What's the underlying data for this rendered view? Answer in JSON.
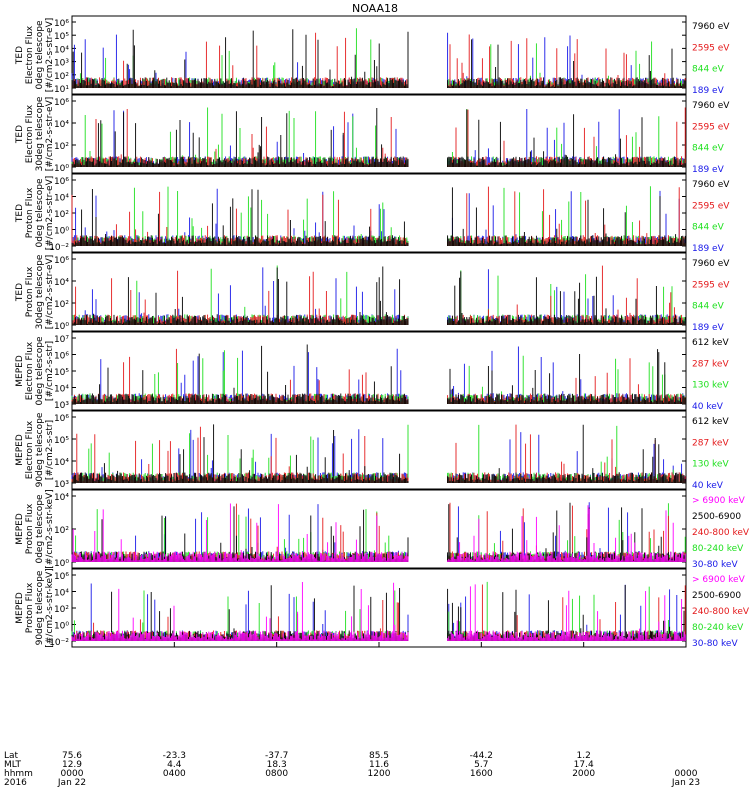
{
  "title": "NOAA18",
  "palette": {
    "red": "#e41a1c",
    "green": "#1fe01f",
    "blue": "#1818e8",
    "black": "#000000",
    "magenta": "#ff00ff"
  },
  "chart_data": {
    "type": "line",
    "x_range": [
      "2016-01-22 00:00",
      "2016-01-23 00:00"
    ],
    "data_gap": [
      "~2016-01-22 12:30",
      "~2016-01-22 15:40"
    ],
    "panels": [
      {
        "id": "ted-e-0",
        "ylabel": [
          "TED",
          "Electron Flux",
          "0deg telescope",
          "[#/cm2-s-str-eV]"
        ],
        "ylim": [
          1,
          1000000.0
        ],
        "log": true,
        "yticks": [
          "10¹",
          "10²",
          "10³",
          "10⁴",
          "10⁵",
          "10⁶"
        ],
        "series": [
          {
            "name": "7960 eV",
            "color": "black",
            "level": 1.3
          },
          {
            "name": "2595 eV",
            "color": "red",
            "level": 2.0
          },
          {
            "name": "844 eV",
            "color": "green",
            "level": 1.3
          },
          {
            "name": "189 eV",
            "color": "blue",
            "level": 0.0
          }
        ]
      },
      {
        "id": "ted-e-30",
        "ylabel": [
          "TED",
          "Electron Flux",
          "30deg telescope",
          "[#/cm2-s-str-eV]"
        ],
        "ylim": [
          1,
          1000000.0
        ],
        "log": true,
        "yticks": [
          "10⁰",
          "10²",
          "10⁴",
          "10⁶"
        ],
        "series": [
          {
            "name": "7960 eV",
            "color": "black",
            "level": 1.0
          },
          {
            "name": "2595 eV",
            "color": "red",
            "level": 1.8
          },
          {
            "name": "844 eV",
            "color": "green",
            "level": 1.2
          },
          {
            "name": "189 eV",
            "color": "blue",
            "level": 1.5
          }
        ]
      },
      {
        "id": "ted-p-0",
        "ylabel": [
          "TED",
          "Proton Flux",
          "0deg telescope",
          "[#/cm2-s-str-eV]"
        ],
        "ylim": [
          0.01,
          1000000.0
        ],
        "log": true,
        "yticks": [
          "10⁻²",
          "10⁰",
          "10²",
          "10⁴",
          "10⁶"
        ],
        "series": [
          {
            "name": "7960 eV",
            "color": "black",
            "level": 0.3
          },
          {
            "name": "2595 eV",
            "color": "red",
            "level": 1.0
          },
          {
            "name": "844 eV",
            "color": "green",
            "level": 0.6
          },
          {
            "name": "189 eV",
            "color": "blue",
            "level": 1.6
          }
        ]
      },
      {
        "id": "ted-p-30",
        "ylabel": [
          "TED",
          "Proton Flux",
          "30deg telescope",
          "[#/cm2-s-str-eV]"
        ],
        "ylim": [
          1,
          1000000.0
        ],
        "log": true,
        "yticks": [
          "10⁰",
          "10²",
          "10⁴",
          "10⁶"
        ],
        "series": [
          {
            "name": "7960 eV",
            "color": "black",
            "level": 0.0
          },
          {
            "name": "2595 eV",
            "color": "red",
            "level": 0.5
          },
          {
            "name": "844 eV",
            "color": "green",
            "level": 1.3
          },
          {
            "name": "189 eV",
            "color": "blue",
            "level": 1.8
          }
        ]
      },
      {
        "id": "meped-e-0",
        "ylabel": [
          "MEPED",
          "Electron Flux",
          "0deg telescope",
          "[#/cm2-s-str]"
        ],
        "ylim": [
          100.0,
          10000000.0
        ],
        "log": true,
        "yticks": [
          "10³",
          "10⁴",
          "10⁵",
          "10⁶",
          "10⁷"
        ],
        "series": [
          {
            "name": "612 keV",
            "color": "black",
            "level": 2.8
          },
          {
            "name": "287 keV",
            "color": "red",
            "level": 3.1
          },
          {
            "name": "130 keV",
            "color": "green",
            "level": 3.0
          },
          {
            "name": "40 keV",
            "color": "blue",
            "level": 3.4
          }
        ]
      },
      {
        "id": "meped-e-90",
        "ylabel": [
          "MEPED",
          "Electron Flux",
          "90deg telescope",
          "[#/cm2-s-str]"
        ],
        "ylim": [
          100.0,
          10000000.0
        ],
        "log": true,
        "yticks": [
          "10³",
          "10⁴",
          "10⁵",
          "10⁶"
        ],
        "series": [
          {
            "name": "612 keV",
            "color": "black",
            "level": 2.7
          },
          {
            "name": "287 keV",
            "color": "red",
            "level": 3.3
          },
          {
            "name": "130 keV",
            "color": "green",
            "level": 2.6
          },
          {
            "name": "40 keV",
            "color": "blue",
            "level": 3.2
          }
        ]
      },
      {
        "id": "meped-p-0",
        "ylabel": [
          "MEPED",
          "Proton Flux",
          "0deg telescope",
          "[#/cm2-s-str-keV]"
        ],
        "ylim": [
          0.01,
          100000.0
        ],
        "log": true,
        "yticks": [
          "10⁰",
          "10²",
          "10⁴"
        ],
        "series": [
          {
            "name": "> 6900 keV",
            "color": "magenta",
            "level": -1.5
          },
          {
            "name": "2500-6900",
            "color": "black",
            "level": -1.3
          },
          {
            "name": "240-800 keV",
            "color": "red",
            "level": -0.8
          },
          {
            "name": "80-240 keV",
            "color": "green",
            "level": 0.0
          },
          {
            "name": "30-80 keV",
            "color": "blue",
            "level": 0.8
          }
        ]
      },
      {
        "id": "meped-p-90",
        "ylabel": [
          "MEPED",
          "Proton Flux",
          "90deg telescope",
          "[#/cm2-s-str-keV]"
        ],
        "ylim": [
          0.01,
          1000000.0
        ],
        "log": true,
        "yticks": [
          "10⁻²",
          "10⁰",
          "10²",
          "10⁴",
          "10⁶"
        ],
        "series": [
          {
            "name": "> 6900 keV",
            "color": "magenta",
            "level": -1.5
          },
          {
            "name": "2500-6900",
            "color": "black",
            "level": -1.0
          },
          {
            "name": "240-800 keV",
            "color": "red",
            "level": -0.5
          },
          {
            "name": "80-240 keV",
            "color": "green",
            "level": 0.0
          },
          {
            "name": "30-80 keV",
            "color": "blue",
            "level": 0.8
          }
        ]
      }
    ],
    "x_axis": {
      "row_labels": [
        "Lat",
        "MLT",
        "hhmm",
        "2016"
      ],
      "ticks": [
        {
          "hours": 0,
          "lat": "75.6",
          "mlt": "12.9",
          "hhmm": "0000",
          "date": "Jan 22"
        },
        {
          "hours": 4,
          "lat": "-23.3",
          "mlt": "4.4",
          "hhmm": "0400",
          "date": ""
        },
        {
          "hours": 8,
          "lat": "-37.7",
          "mlt": "18.3",
          "hhmm": "0800",
          "date": ""
        },
        {
          "hours": 12,
          "lat": "85.5",
          "mlt": "11.6",
          "hhmm": "1200",
          "date": ""
        },
        {
          "hours": 16,
          "lat": "-44.2",
          "mlt": "5.7",
          "hhmm": "1600",
          "date": ""
        },
        {
          "hours": 20,
          "lat": "1.2",
          "mlt": "17.4",
          "hhmm": "2000",
          "date": ""
        },
        {
          "hours": 24,
          "lat": "",
          "mlt": "",
          "hhmm": "0000",
          "date": "Jan 23"
        }
      ]
    }
  }
}
